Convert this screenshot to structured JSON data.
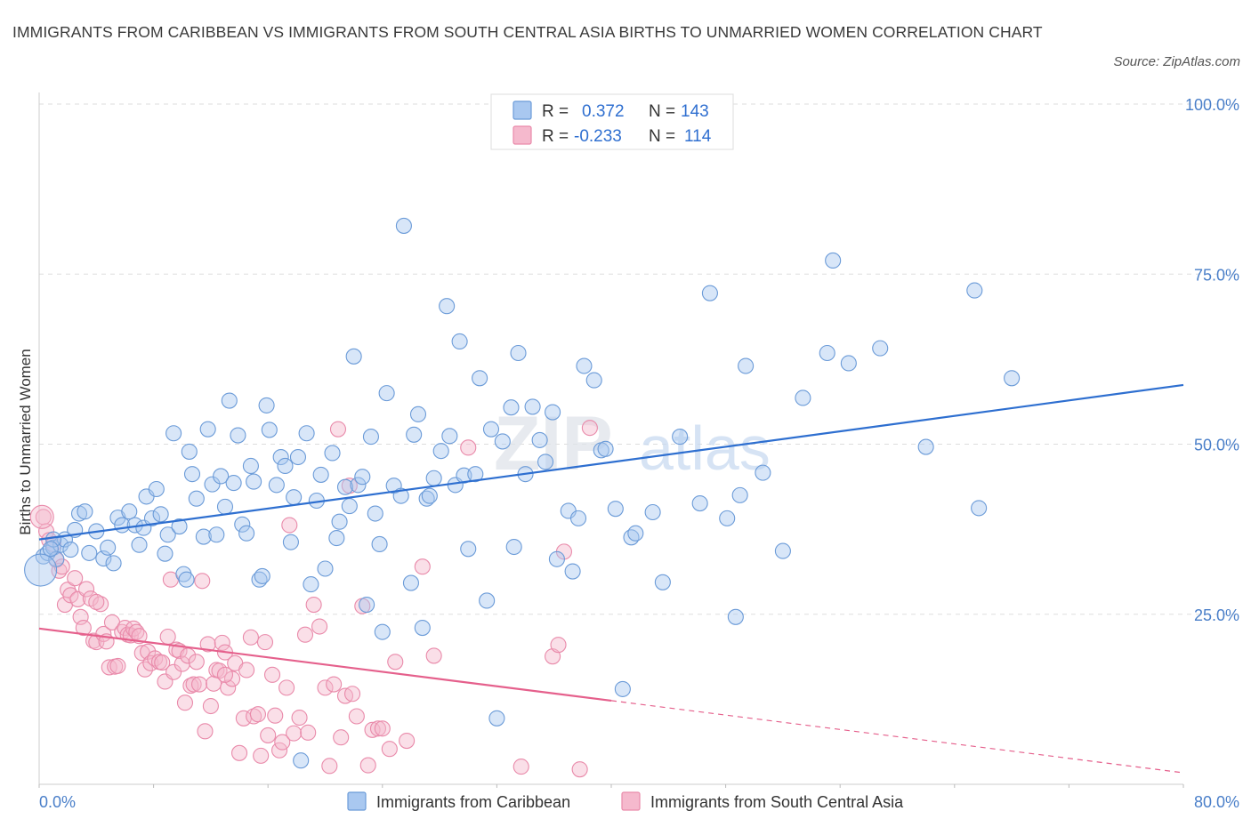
{
  "title": "IMMIGRANTS FROM CARIBBEAN VS IMMIGRANTS FROM SOUTH CENTRAL ASIA BIRTHS TO UNMARRIED WOMEN CORRELATION CHART",
  "source": "Source: ZipAtlas.com",
  "watermark": "ZIPatlas",
  "colors": {
    "blue_fill": "#a9c8f0",
    "blue_stroke": "#6b9bd8",
    "blue_line": "#2e6fd0",
    "pink_fill": "#f5b9cd",
    "pink_stroke": "#e98aaa",
    "pink_line": "#e5608c",
    "tick_text": "#4a7fc9",
    "grid": "#dddddd"
  },
  "legend": {
    "rows": [
      {
        "r_label": "R =",
        "r_value": "0.372",
        "n_label": "N =",
        "n_value": "143"
      },
      {
        "r_label": "R =",
        "r_value": "-0.233",
        "n_label": "N =",
        "n_value": "114"
      }
    ]
  },
  "chart_data": {
    "type": "scatter",
    "title": "IMMIGRANTS FROM CARIBBEAN VS IMMIGRANTS FROM SOUTH CENTRAL ASIA BIRTHS TO UNMARRIED WOMEN CORRELATION CHART",
    "xlabel": "",
    "ylabel": "Births to Unmarried Women",
    "xlim": [
      0,
      80
    ],
    "ylim": [
      0,
      100
    ],
    "x_tick_labels": [
      "0.0%",
      "80.0%"
    ],
    "y_tick_labels": [
      "25.0%",
      "50.0%",
      "75.0%",
      "100.0%"
    ],
    "y_ticks": [
      25,
      50,
      75,
      100
    ],
    "grid": true,
    "legend_position": "top-center",
    "series": [
      {
        "name": "Immigrants from Caribbean",
        "color": "#a9c8f0",
        "R": 0.372,
        "N": 143,
        "trend": {
          "x": [
            0,
            80
          ],
          "y": [
            36.0,
            58.7
          ]
        },
        "points": [
          [
            0.3,
            33.5
          ],
          [
            0.6,
            34.0
          ],
          [
            1.0,
            34.8
          ],
          [
            1.2,
            33.1
          ],
          [
            1.5,
            35.2
          ],
          [
            1.8,
            36.0
          ],
          [
            2.2,
            34.5
          ],
          [
            2.8,
            39.8
          ],
          [
            3.2,
            40.1
          ],
          [
            3.5,
            34.0
          ],
          [
            4.0,
            37.2
          ],
          [
            4.5,
            33.2
          ],
          [
            4.8,
            34.8
          ],
          [
            5.2,
            32.5
          ],
          [
            5.5,
            39.2
          ],
          [
            5.8,
            38.1
          ],
          [
            6.3,
            40.1
          ],
          [
            6.7,
            38.1
          ],
          [
            7.0,
            35.2
          ],
          [
            7.3,
            37.7
          ],
          [
            7.5,
            42.3
          ],
          [
            7.9,
            39.1
          ],
          [
            8.2,
            43.4
          ],
          [
            8.5,
            39.7
          ],
          [
            8.8,
            33.9
          ],
          [
            9.0,
            36.7
          ],
          [
            9.4,
            51.6
          ],
          [
            9.8,
            37.9
          ],
          [
            10.1,
            30.9
          ],
          [
            10.3,
            30.1
          ],
          [
            10.5,
            48.9
          ],
          [
            10.7,
            45.6
          ],
          [
            11.0,
            42.0
          ],
          [
            11.5,
            36.4
          ],
          [
            11.8,
            52.2
          ],
          [
            12.1,
            44.1
          ],
          [
            12.4,
            36.7
          ],
          [
            12.7,
            45.3
          ],
          [
            13.0,
            40.8
          ],
          [
            13.3,
            56.4
          ],
          [
            13.6,
            44.3
          ],
          [
            13.9,
            51.3
          ],
          [
            14.2,
            38.2
          ],
          [
            14.5,
            36.9
          ],
          [
            14.8,
            46.8
          ],
          [
            15.0,
            44.5
          ],
          [
            15.4,
            30.1
          ],
          [
            15.6,
            30.6
          ],
          [
            15.9,
            55.7
          ],
          [
            16.1,
            52.1
          ],
          [
            16.6,
            44.0
          ],
          [
            16.9,
            48.1
          ],
          [
            17.2,
            46.8
          ],
          [
            17.6,
            35.6
          ],
          [
            17.8,
            42.2
          ],
          [
            18.1,
            48.1
          ],
          [
            18.7,
            51.6
          ],
          [
            19.0,
            29.4
          ],
          [
            19.4,
            41.7
          ],
          [
            19.7,
            45.5
          ],
          [
            20.0,
            31.7
          ],
          [
            20.5,
            48.7
          ],
          [
            20.8,
            36.2
          ],
          [
            21.0,
            38.6
          ],
          [
            21.4,
            43.7
          ],
          [
            21.7,
            40.9
          ],
          [
            22.0,
            62.9
          ],
          [
            22.3,
            44.0
          ],
          [
            22.6,
            45.2
          ],
          [
            22.9,
            26.4
          ],
          [
            23.2,
            51.1
          ],
          [
            23.5,
            39.8
          ],
          [
            23.8,
            35.3
          ],
          [
            24.0,
            22.4
          ],
          [
            24.3,
            57.5
          ],
          [
            24.8,
            43.9
          ],
          [
            25.3,
            42.4
          ],
          [
            25.5,
            82.1
          ],
          [
            26.0,
            29.6
          ],
          [
            26.2,
            51.4
          ],
          [
            26.5,
            54.4
          ],
          [
            26.8,
            23.0
          ],
          [
            27.1,
            42.0
          ],
          [
            27.3,
            42.4
          ],
          [
            27.6,
            45.0
          ],
          [
            28.1,
            49.0
          ],
          [
            28.5,
            70.3
          ],
          [
            28.7,
            51.2
          ],
          [
            29.1,
            44.0
          ],
          [
            29.4,
            65.1
          ],
          [
            29.7,
            45.4
          ],
          [
            30.0,
            34.6
          ],
          [
            30.5,
            45.6
          ],
          [
            30.8,
            59.7
          ],
          [
            31.3,
            27.0
          ],
          [
            31.6,
            52.2
          ],
          [
            32.0,
            9.7
          ],
          [
            32.4,
            50.4
          ],
          [
            33.0,
            55.4
          ],
          [
            33.2,
            34.9
          ],
          [
            33.5,
            63.4
          ],
          [
            34.0,
            45.6
          ],
          [
            34.5,
            55.5
          ],
          [
            35.0,
            50.6
          ],
          [
            35.4,
            47.4
          ],
          [
            35.9,
            54.7
          ],
          [
            36.2,
            33.1
          ],
          [
            37.0,
            40.2
          ],
          [
            37.3,
            31.3
          ],
          [
            37.7,
            39.1
          ],
          [
            38.1,
            61.5
          ],
          [
            38.8,
            59.4
          ],
          [
            39.3,
            49.1
          ],
          [
            39.6,
            49.3
          ],
          [
            40.3,
            40.5
          ],
          [
            40.8,
            14.0
          ],
          [
            41.4,
            36.3
          ],
          [
            41.7,
            36.9
          ],
          [
            42.9,
            40.0
          ],
          [
            43.6,
            29.7
          ],
          [
            44.8,
            51.1
          ],
          [
            46.2,
            41.3
          ],
          [
            46.9,
            72.2
          ],
          [
            48.1,
            39.1
          ],
          [
            48.7,
            24.6
          ],
          [
            49.0,
            42.5
          ],
          [
            49.4,
            61.5
          ],
          [
            50.6,
            45.8
          ],
          [
            52.0,
            34.3
          ],
          [
            53.4,
            56.8
          ],
          [
            55.1,
            63.4
          ],
          [
            55.5,
            77.0
          ],
          [
            56.6,
            61.9
          ],
          [
            58.8,
            64.1
          ],
          [
            62.0,
            49.6
          ],
          [
            65.4,
            72.6
          ],
          [
            65.7,
            40.6
          ],
          [
            68.0,
            59.7
          ],
          [
            18.3,
            3.5
          ],
          [
            1.0,
            36.0
          ],
          [
            0.8,
            34.6
          ],
          [
            2.5,
            37.4
          ]
        ]
      },
      {
        "name": "Immigrants from South Central Asia",
        "color": "#f5b9cd",
        "R": -0.233,
        "N": 114,
        "trend": {
          "x": [
            0,
            40.0
          ],
          "y": [
            22.9,
            12.3
          ],
          "dashed_to": {
            "x": 80,
            "y": 1.7
          }
        },
        "points": [
          [
            0.3,
            39.3
          ],
          [
            0.5,
            37.2
          ],
          [
            0.7,
            35.9
          ],
          [
            1.0,
            35.3
          ],
          [
            1.2,
            33.0
          ],
          [
            1.4,
            31.4
          ],
          [
            1.6,
            32.0
          ],
          [
            1.8,
            26.4
          ],
          [
            2.0,
            28.6
          ],
          [
            2.2,
            27.8
          ],
          [
            2.5,
            30.3
          ],
          [
            2.7,
            27.2
          ],
          [
            2.9,
            24.6
          ],
          [
            3.1,
            23.0
          ],
          [
            3.3,
            28.7
          ],
          [
            3.6,
            27.3
          ],
          [
            3.8,
            21.1
          ],
          [
            4.0,
            20.9
          ],
          [
            4.3,
            26.5
          ],
          [
            4.5,
            22.1
          ],
          [
            4.7,
            21.0
          ],
          [
            4.9,
            17.2
          ],
          [
            5.1,
            23.8
          ],
          [
            5.3,
            17.3
          ],
          [
            5.5,
            17.4
          ],
          [
            5.8,
            22.4
          ],
          [
            6.0,
            23.0
          ],
          [
            6.2,
            22.0
          ],
          [
            6.4,
            21.9
          ],
          [
            6.6,
            22.9
          ],
          [
            6.8,
            22.4
          ],
          [
            7.0,
            21.8
          ],
          [
            7.2,
            19.3
          ],
          [
            7.4,
            16.9
          ],
          [
            7.6,
            19.5
          ],
          [
            7.8,
            17.8
          ],
          [
            8.1,
            18.5
          ],
          [
            8.4,
            18.0
          ],
          [
            8.6,
            17.9
          ],
          [
            8.8,
            15.1
          ],
          [
            9.0,
            21.7
          ],
          [
            9.2,
            30.1
          ],
          [
            9.4,
            16.5
          ],
          [
            9.6,
            19.8
          ],
          [
            9.8,
            19.6
          ],
          [
            10.0,
            17.7
          ],
          [
            10.2,
            12.0
          ],
          [
            10.4,
            18.9
          ],
          [
            10.6,
            14.5
          ],
          [
            10.8,
            14.7
          ],
          [
            11.0,
            18.0
          ],
          [
            11.2,
            14.7
          ],
          [
            11.4,
            29.9
          ],
          [
            11.6,
            7.8
          ],
          [
            11.8,
            20.6
          ],
          [
            12.0,
            11.5
          ],
          [
            12.2,
            14.8
          ],
          [
            12.4,
            16.8
          ],
          [
            12.6,
            16.7
          ],
          [
            12.8,
            20.8
          ],
          [
            13.0,
            19.4
          ],
          [
            13.2,
            14.2
          ],
          [
            13.5,
            15.5
          ],
          [
            13.7,
            17.8
          ],
          [
            14.0,
            4.6
          ],
          [
            14.3,
            9.7
          ],
          [
            14.5,
            16.8
          ],
          [
            14.8,
            21.6
          ],
          [
            15.0,
            10.0
          ],
          [
            15.3,
            10.3
          ],
          [
            15.5,
            4.2
          ],
          [
            15.8,
            20.9
          ],
          [
            16.0,
            7.2
          ],
          [
            16.3,
            16.1
          ],
          [
            16.5,
            10.1
          ],
          [
            16.8,
            5.0
          ],
          [
            17.0,
            6.2
          ],
          [
            17.3,
            14.2
          ],
          [
            17.5,
            38.1
          ],
          [
            17.8,
            7.5
          ],
          [
            18.2,
            9.8
          ],
          [
            18.6,
            22.0
          ],
          [
            18.8,
            7.6
          ],
          [
            19.2,
            26.4
          ],
          [
            19.6,
            23.2
          ],
          [
            20.0,
            14.2
          ],
          [
            20.3,
            2.7
          ],
          [
            20.6,
            14.7
          ],
          [
            20.9,
            52.2
          ],
          [
            21.1,
            6.9
          ],
          [
            21.4,
            13.0
          ],
          [
            21.7,
            43.9
          ],
          [
            21.9,
            13.3
          ],
          [
            22.2,
            10.0
          ],
          [
            22.6,
            26.2
          ],
          [
            23.0,
            2.8
          ],
          [
            23.3,
            8.0
          ],
          [
            23.7,
            8.2
          ],
          [
            24.0,
            8.2
          ],
          [
            24.5,
            5.2
          ],
          [
            24.9,
            18.0
          ],
          [
            25.7,
            6.4
          ],
          [
            26.8,
            32.0
          ],
          [
            27.6,
            18.9
          ],
          [
            30.0,
            49.5
          ],
          [
            33.7,
            2.6
          ],
          [
            35.9,
            18.8
          ],
          [
            36.3,
            20.5
          ],
          [
            36.7,
            34.2
          ],
          [
            37.8,
            2.2
          ],
          [
            38.5,
            52.4
          ],
          [
            13.0,
            16.1
          ],
          [
            4.0,
            26.8
          ]
        ]
      }
    ]
  },
  "bottom_legend": [
    {
      "label": "Immigrants from Caribbean"
    },
    {
      "label": "Immigrants from South Central Asia"
    }
  ]
}
